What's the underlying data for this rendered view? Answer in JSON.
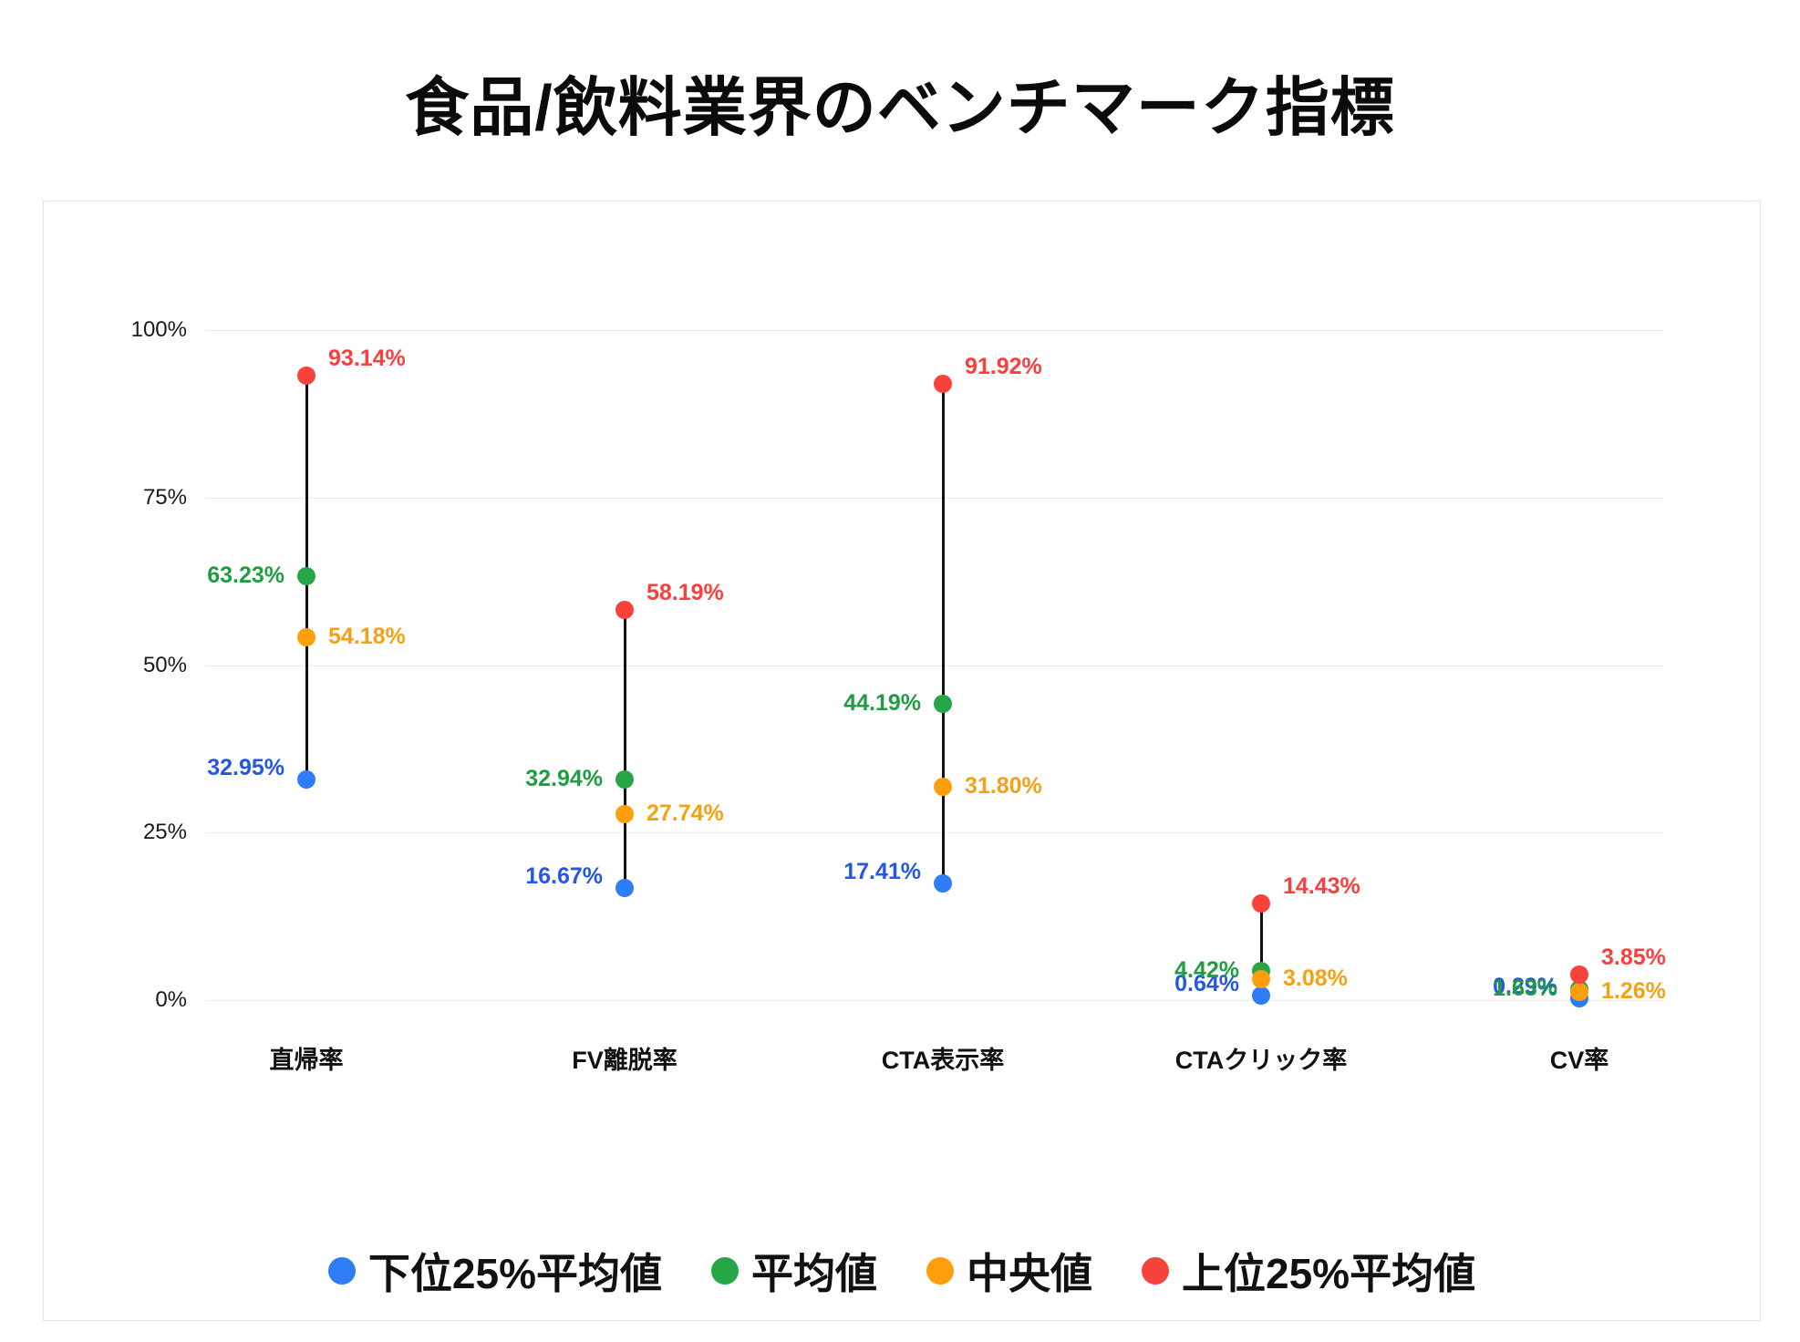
{
  "page": {
    "title": "食品/飲料業界のベンチマーク指標"
  },
  "chart_data": {
    "type": "scatter",
    "subtype": "dot-range",
    "title": "食品/飲料業界のベンチマーク指標",
    "categories": [
      "直帰率",
      "FV離脱率",
      "CTA表示率",
      "CTAクリック率",
      "CV率"
    ],
    "ylim": [
      0,
      100
    ],
    "y_ticks": [
      {
        "value": 0,
        "label": "0%"
      },
      {
        "value": 25,
        "label": "25%"
      },
      {
        "value": 50,
        "label": "50%"
      },
      {
        "value": 75,
        "label": "75%"
      },
      {
        "value": 100,
        "label": "100%"
      }
    ],
    "grid": true,
    "legend_position": "bottom",
    "stem_color": "#111111",
    "series": [
      {
        "name": "下位25%平均値",
        "color": "#2e7cf6",
        "text_color": "#2457e6",
        "values": [
          32.95,
          16.67,
          17.41,
          0.64,
          0.29
        ],
        "labels": [
          "32.95%",
          "16.67%",
          "17.41%",
          "0.64%",
          "0.29%"
        ]
      },
      {
        "name": "平均値",
        "color": "#27a648",
        "text_color": "#1f9d41",
        "values": [
          63.23,
          32.94,
          44.19,
          4.42,
          1.63
        ],
        "labels": [
          "63.23%",
          "32.94%",
          "44.19%",
          "4.42%",
          "1.63%"
        ]
      },
      {
        "name": "中央値",
        "color": "#ff9e0d",
        "text_color": "#f5a114",
        "values": [
          54.18,
          27.74,
          31.8,
          3.08,
          1.26
        ],
        "labels": [
          "54.18%",
          "27.74%",
          "31.80%",
          "3.08%",
          "1.26%"
        ]
      },
      {
        "name": "上位25%平均値",
        "color": "#f8423c",
        "text_color": "#fb3e3e",
        "values": [
          93.14,
          58.19,
          91.92,
          14.43,
          3.85
        ],
        "labels": [
          "93.14%",
          "58.19%",
          "91.92%",
          "14.43%",
          "3.85%"
        ]
      }
    ]
  }
}
